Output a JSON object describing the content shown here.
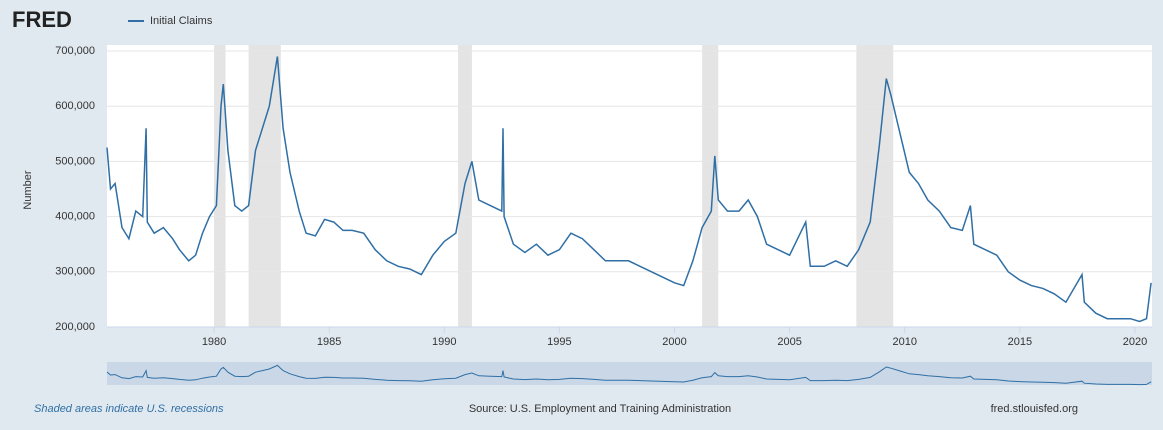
{
  "logo": "FRED",
  "chart_data": {
    "type": "line",
    "series": [
      {
        "name": "Initial Claims",
        "color": "#2f6fa5",
        "x": [
          1975.35,
          1975.5,
          1975.7,
          1976.0,
          1976.3,
          1976.6,
          1976.9,
          1977.05,
          1977.1,
          1977.4,
          1977.8,
          1978.2,
          1978.5,
          1978.9,
          1979.2,
          1979.5,
          1979.8,
          1980.1,
          1980.3,
          1980.4,
          1980.6,
          1980.9,
          1981.2,
          1981.5,
          1981.8,
          1982.1,
          1982.4,
          1982.75,
          1983.0,
          1983.3,
          1983.7,
          1984.0,
          1984.4,
          1984.8,
          1985.2,
          1985.6,
          1986.0,
          1986.5,
          1987.0,
          1987.5,
          1988.0,
          1988.5,
          1989.0,
          1989.5,
          1990.0,
          1990.5,
          1990.9,
          1991.2,
          1991.5,
          1992.0,
          1992.5,
          1992.55,
          1992.6,
          1993.0,
          1993.5,
          1994.0,
          1994.5,
          1995.0,
          1995.5,
          1996.0,
          1996.5,
          1997.0,
          1997.5,
          1998.0,
          1998.5,
          1999.0,
          1999.5,
          2000.0,
          2000.4,
          2000.8,
          2001.2,
          2001.6,
          2001.75,
          2001.9,
          2002.3,
          2002.8,
          2003.2,
          2003.6,
          2004.0,
          2004.5,
          2005.0,
          2005.7,
          2005.9,
          2006.5,
          2007.0,
          2007.5,
          2008.0,
          2008.5,
          2008.9,
          2009.2,
          2009.4,
          2009.8,
          2010.2,
          2010.6,
          2011.0,
          2011.5,
          2012.0,
          2012.5,
          2012.85,
          2013.0,
          2013.5,
          2014.0,
          2014.5,
          2015.0,
          2015.5,
          2016.0,
          2016.5,
          2017.0,
          2017.7,
          2017.8,
          2018.3,
          2018.8,
          2019.3,
          2019.8,
          2020.2,
          2020.5,
          2020.7
        ],
        "values": [
          525000,
          450000,
          460000,
          380000,
          360000,
          410000,
          400000,
          560000,
          390000,
          370000,
          380000,
          360000,
          340000,
          320000,
          330000,
          370000,
          400000,
          420000,
          600000,
          640000,
          520000,
          420000,
          410000,
          420000,
          520000,
          560000,
          600000,
          690000,
          560000,
          480000,
          410000,
          370000,
          365000,
          395000,
          390000,
          375000,
          375000,
          370000,
          340000,
          320000,
          310000,
          305000,
          295000,
          330000,
          355000,
          370000,
          460000,
          500000,
          430000,
          420000,
          410000,
          560000,
          400000,
          350000,
          335000,
          350000,
          330000,
          340000,
          370000,
          360000,
          340000,
          320000,
          320000,
          320000,
          310000,
          300000,
          290000,
          280000,
          275000,
          320000,
          380000,
          410000,
          510000,
          430000,
          410000,
          410000,
          430000,
          400000,
          350000,
          340000,
          330000,
          390000,
          310000,
          310000,
          320000,
          310000,
          340000,
          390000,
          530000,
          650000,
          620000,
          550000,
          480000,
          460000,
          430000,
          410000,
          380000,
          375000,
          420000,
          350000,
          340000,
          330000,
          300000,
          285000,
          275000,
          270000,
          260000,
          245000,
          295000,
          245000,
          225000,
          215000,
          215000,
          215000,
          210000,
          215000,
          280000
        ]
      }
    ],
    "recessions": [
      [
        1980.0,
        1980.5
      ],
      [
        1981.5,
        1982.9
      ],
      [
        1990.6,
        1991.2
      ],
      [
        2001.2,
        2001.9
      ],
      [
        2007.9,
        2009.5
      ]
    ],
    "ylabel": "Number",
    "xlim": [
      1975.35,
      2020.74
    ],
    "ylim": [
      200000,
      700000
    ],
    "xticks": [
      1980,
      1985,
      1990,
      1995,
      2000,
      2005,
      2010,
      2015,
      2020
    ],
    "yticks": [
      {
        "value": 200000,
        "label": "200,000"
      },
      {
        "value": 300000,
        "label": "300,000"
      },
      {
        "value": 400000,
        "label": "400,000"
      },
      {
        "value": 500000,
        "label": "500,000"
      },
      {
        "value": 600000,
        "label": "600,000"
      },
      {
        "value": 700000,
        "label": "700,000"
      }
    ],
    "grid": true
  },
  "footer": {
    "note": "Shaded areas indicate U.S. recessions",
    "source": "Source: U.S. Employment and Training Administration",
    "site": "fred.stlouisfed.org"
  }
}
